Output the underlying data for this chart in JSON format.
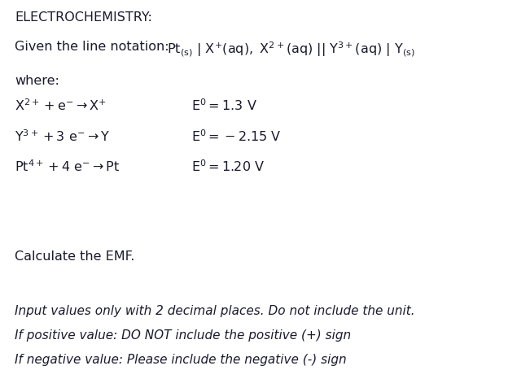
{
  "bg_color": "#ffffff",
  "text_color": "#1a1a2e",
  "font_size_title": 11.5,
  "font_size_body": 11.5,
  "font_size_italic": 11.0,
  "title": "ELECTROCHEMISTRY:",
  "line_notation_label": "Given the line notation:",
  "line_notation_formula": "$\\mathrm{Pt_{(s)}\\ |\\ X^{+}(aq),\\ X^{2+}(aq)\\ ||\\ Y^{3+}(aq)\\ |\\ Y_{(s)}}$",
  "where": "where:",
  "r1_lhs": "$\\mathrm{X^{2+} + e^{-} \\rightarrow X^{+}}$",
  "r1_rhs": "$\\mathrm{E^{0} = 1.3\\ V}$",
  "r2_lhs": "$\\mathrm{Y^{3+} + 3\\ e^{-} \\rightarrow Y}$",
  "r2_rhs": "$\\mathrm{E^{0} = -2.15\\ V}$",
  "r3_lhs": "$\\mathrm{Pt^{4+} + 4\\ e^{-} \\rightarrow Pt}$",
  "r3_rhs": "$\\mathrm{E^{0} = 1.20\\ V}$",
  "calc": "Calculate the EMF.",
  "italic1": "Input values only with 2 decimal places. Do not include the unit.",
  "italic2": "If positive value: DO NOT include the positive (+) sign",
  "italic3": "If negative value: Please include the negative (-) sign"
}
